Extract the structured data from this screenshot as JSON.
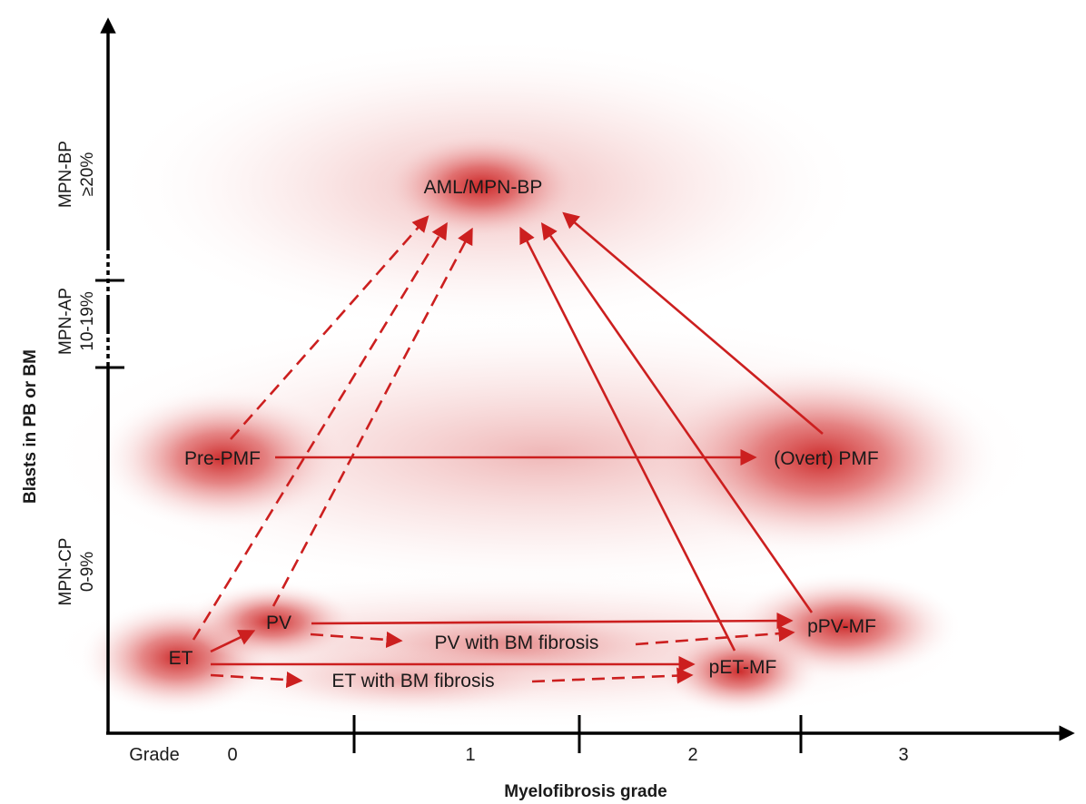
{
  "axes": {
    "y_title": "Blasts in PB or BM",
    "x_title": "Myelofibrosis grade",
    "x_prefix": "Grade",
    "x_ticks": [
      "0",
      "1",
      "2",
      "3"
    ]
  },
  "y_bands": [
    {
      "name": "MPN-BP",
      "range": "≥20%"
    },
    {
      "name": "MPN-AP",
      "range": "10-19%"
    },
    {
      "name": "MPN-CP",
      "range": "0-9%"
    }
  ],
  "nodes": {
    "aml": "AML/MPN-BP",
    "pre_pmf": "Pre-PMF",
    "overt_pmf": "(Overt) PMF",
    "pv": "PV",
    "et": "ET",
    "pv_fibrosis": "PV with BM fibrosis",
    "et_fibrosis": "ET with BM fibrosis",
    "ppv_mf": "pPV-MF",
    "pet_mf": "pET-MF"
  },
  "colors": {
    "arrow": "#cc1f1f",
    "glow": "#c81818",
    "axis": "#000000",
    "text": "#1a1a1a"
  },
  "transitions": [
    {
      "from": "Pre-PMF",
      "to": "AML/MPN-BP",
      "style": "dashed"
    },
    {
      "from": "ET",
      "to": "AML/MPN-BP",
      "style": "dashed"
    },
    {
      "from": "PV",
      "to": "AML/MPN-BP",
      "style": "dashed"
    },
    {
      "from": "pET-MF",
      "to": "AML/MPN-BP",
      "style": "solid"
    },
    {
      "from": "pPV-MF",
      "to": "AML/MPN-BP",
      "style": "solid"
    },
    {
      "from": "(Overt) PMF",
      "to": "AML/MPN-BP",
      "style": "solid"
    },
    {
      "from": "Pre-PMF",
      "to": "(Overt) PMF",
      "style": "solid"
    },
    {
      "from": "ET",
      "to": "PV",
      "style": "solid"
    },
    {
      "from": "ET",
      "to": "pET-MF",
      "style": "solid"
    },
    {
      "from": "ET",
      "to": "ET with BM fibrosis",
      "style": "dashed"
    },
    {
      "from": "ET with BM fibrosis",
      "to": "pET-MF",
      "style": "dashed"
    },
    {
      "from": "PV",
      "to": "pPV-MF",
      "style": "solid"
    },
    {
      "from": "PV",
      "to": "PV with BM fibrosis",
      "style": "dashed"
    },
    {
      "from": "PV with BM fibrosis",
      "to": "pPV-MF",
      "style": "dashed"
    }
  ]
}
